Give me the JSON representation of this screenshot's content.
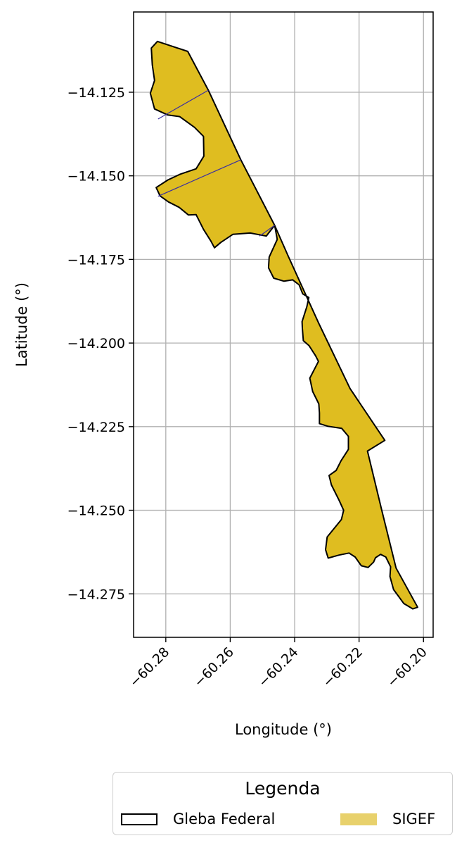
{
  "chart_data": {
    "type": "map",
    "xlabel": "Longitude (°)",
    "ylabel": "Latitude (°)",
    "xlim": [
      -60.29,
      -60.197
    ],
    "ylim": [
      -14.288,
      -14.101
    ],
    "xticks": [
      -60.28,
      -60.26,
      -60.24,
      -60.22,
      -60.2
    ],
    "yticks": [
      -14.125,
      -14.15,
      -14.175,
      -14.2,
      -14.225,
      -14.25,
      -14.275
    ],
    "xtick_labels": [
      "−60.28",
      "−60.26",
      "−60.24",
      "−60.22",
      "−60.20"
    ],
    "ytick_labels": [
      "−14.125",
      "−14.150",
      "−14.175",
      "−14.200",
      "−14.225",
      "−14.250",
      "−14.275"
    ],
    "grid": true,
    "legend": {
      "title": "Legenda",
      "placement": "below",
      "items": [
        {
          "label": "Gleba Federal",
          "style": "outline",
          "color": "#000000"
        },
        {
          "label": "SIGEF",
          "style": "fill",
          "color": "#e8d16c"
        }
      ]
    },
    "colors": {
      "polygon_fill": "#dfbd20",
      "polygon_edge": "#000000",
      "parcel_lines": "#3a2fa0",
      "grid": "#b0b0b0"
    },
    "parcel_lines": [
      [
        [
          -60.2824,
          -14.133
        ],
        [
          -60.2668,
          -14.1244
        ]
      ],
      [
        [
          -60.2824,
          -14.1561
        ],
        [
          -60.2567,
          -14.1452
        ]
      ],
      [
        [
          -60.2509,
          -14.168
        ],
        [
          -60.2462,
          -14.1648
        ]
      ]
    ],
    "polygon": [
      [
        -60.2826,
        -14.1098
      ],
      [
        -60.2732,
        -14.1128
      ],
      [
        -60.2668,
        -14.1244
      ],
      [
        -60.2567,
        -14.1452
      ],
      [
        -60.2462,
        -14.1648
      ],
      [
        -60.2419,
        -14.1742
      ],
      [
        -60.2326,
        -14.1939
      ],
      [
        -60.2228,
        -14.2136
      ],
      [
        -60.212,
        -14.2291
      ],
      [
        -60.2174,
        -14.2323
      ],
      [
        -60.213,
        -14.2498
      ],
      [
        -60.2085,
        -14.2673
      ],
      [
        -60.2018,
        -14.279
      ],
      [
        -60.2033,
        -14.2795
      ],
      [
        -60.2061,
        -14.2779
      ],
      [
        -60.2093,
        -14.2737
      ],
      [
        -60.2104,
        -14.2698
      ],
      [
        -60.2102,
        -14.2669
      ],
      [
        -60.2117,
        -14.264
      ],
      [
        -60.2133,
        -14.2632
      ],
      [
        -60.2149,
        -14.2642
      ],
      [
        -60.2155,
        -14.2655
      ],
      [
        -60.2172,
        -14.2671
      ],
      [
        -60.2193,
        -14.2666
      ],
      [
        -60.2212,
        -14.264
      ],
      [
        -60.2231,
        -14.2628
      ],
      [
        -60.2262,
        -14.2634
      ],
      [
        -60.2296,
        -14.2643
      ],
      [
        -60.2304,
        -14.2618
      ],
      [
        -60.2299,
        -14.258
      ],
      [
        -60.2255,
        -14.2528
      ],
      [
        -60.2248,
        -14.25
      ],
      [
        -60.2262,
        -14.247
      ],
      [
        -60.2286,
        -14.2424
      ],
      [
        -60.2293,
        -14.2396
      ],
      [
        -60.2271,
        -14.2381
      ],
      [
        -60.2256,
        -14.2352
      ],
      [
        -60.2233,
        -14.2318
      ],
      [
        -60.2233,
        -14.2279
      ],
      [
        -60.2254,
        -14.2255
      ],
      [
        -60.2296,
        -14.2249
      ],
      [
        -60.2323,
        -14.2241
      ],
      [
        -60.2323,
        -14.2209
      ],
      [
        -60.2325,
        -14.2182
      ],
      [
        -60.2344,
        -14.2145
      ],
      [
        -60.2353,
        -14.2105
      ],
      [
        -60.2326,
        -14.2055
      ],
      [
        -60.2335,
        -14.2038
      ],
      [
        -60.2355,
        -14.2008
      ],
      [
        -60.2373,
        -14.1993
      ],
      [
        -60.2376,
        -14.1956
      ],
      [
        -60.2377,
        -14.1936
      ],
      [
        -60.2362,
        -14.1891
      ],
      [
        -60.2356,
        -14.1864
      ],
      [
        -60.2375,
        -14.1853
      ],
      [
        -60.2386,
        -14.1826
      ],
      [
        -60.2406,
        -14.1811
      ],
      [
        -60.2433,
        -14.1815
      ],
      [
        -60.2465,
        -14.1806
      ],
      [
        -60.2481,
        -14.1775
      ],
      [
        -60.2479,
        -14.1743
      ],
      [
        -60.2454,
        -14.169
      ],
      [
        -60.2462,
        -14.1648
      ],
      [
        -60.2488,
        -14.168
      ],
      [
        -60.2538,
        -14.1671
      ],
      [
        -60.2592,
        -14.1675
      ],
      [
        -60.2629,
        -14.1699
      ],
      [
        -60.2649,
        -14.1715
      ],
      [
        -60.266,
        -14.1695
      ],
      [
        -60.2683,
        -14.166
      ],
      [
        -60.2706,
        -14.1616
      ],
      [
        -60.273,
        -14.1617
      ],
      [
        -60.2759,
        -14.1594
      ],
      [
        -60.2792,
        -14.1578
      ],
      [
        -60.2818,
        -14.156
      ],
      [
        -60.283,
        -14.1535
      ],
      [
        -60.2793,
        -14.1512
      ],
      [
        -60.2755,
        -14.1495
      ],
      [
        -60.2706,
        -14.1479
      ],
      [
        -60.2682,
        -14.1441
      ],
      [
        -60.2683,
        -14.1382
      ],
      [
        -60.2711,
        -14.1355
      ],
      [
        -60.2757,
        -14.1323
      ],
      [
        -60.2794,
        -14.1318
      ],
      [
        -60.2835,
        -14.13
      ],
      [
        -60.2848,
        -14.1253
      ],
      [
        -60.2835,
        -14.1215
      ],
      [
        -60.2842,
        -14.1168
      ],
      [
        -60.2845,
        -14.1118
      ],
      [
        -60.2826,
        -14.1098
      ]
    ]
  }
}
